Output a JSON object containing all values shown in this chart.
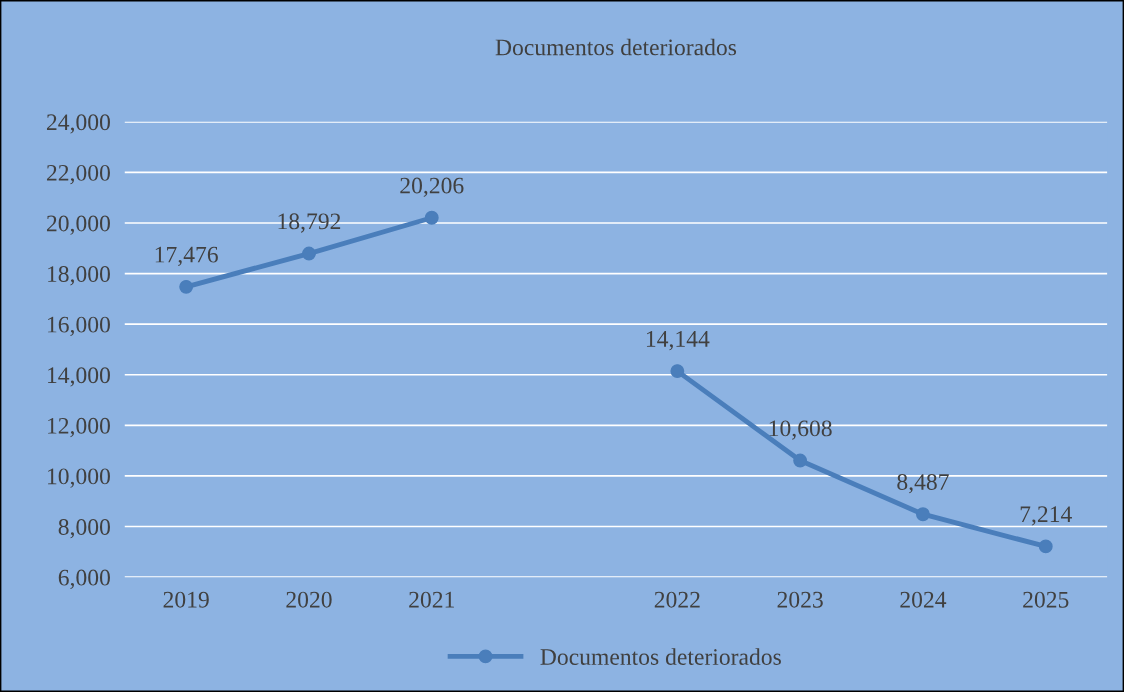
{
  "chart_data": {
    "type": "line",
    "title": "Documentos deteriorados",
    "categories": [
      "2019",
      "2020",
      "2021",
      null,
      "2022",
      "2023",
      "2024",
      "2025"
    ],
    "series": [
      {
        "name": "Documentos deteriorados",
        "color": "#4a7ebb",
        "values": [
          17476,
          18792,
          20206,
          null,
          14144,
          10608,
          8487,
          7214
        ],
        "value_labels": [
          "17,476",
          "18,792",
          "20,206",
          null,
          "14,144",
          "10,608",
          "8,487",
          "7,214"
        ]
      }
    ],
    "ylim": [
      6000,
      24000
    ],
    "yticks": [
      {
        "value": 6000,
        "label": "6,000"
      },
      {
        "value": 8000,
        "label": "8,000"
      },
      {
        "value": 10000,
        "label": "10,000"
      },
      {
        "value": 12000,
        "label": "12,000"
      },
      {
        "value": 14000,
        "label": "14,000"
      },
      {
        "value": 16000,
        "label": "16,000"
      },
      {
        "value": 18000,
        "label": "18,000"
      },
      {
        "value": 20000,
        "label": "20,000"
      },
      {
        "value": 22000,
        "label": "22,000"
      },
      {
        "value": 24000,
        "label": "24,000"
      }
    ],
    "grid": "y",
    "legend": "bottom",
    "marker": "circle",
    "line_style": "solid"
  }
}
